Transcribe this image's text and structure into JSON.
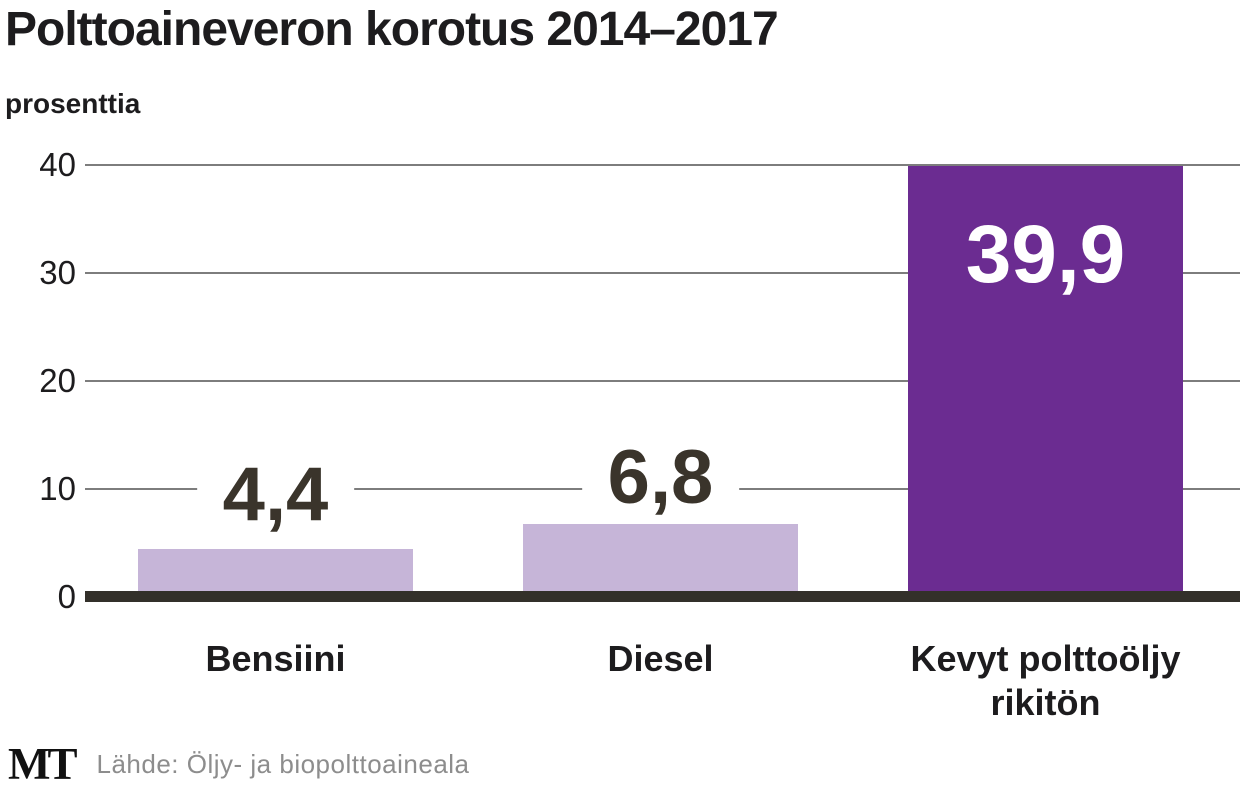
{
  "header": {
    "title": "Polttoaineveron korotus 2014–2017",
    "unit_label": "prosenttia"
  },
  "chart_data": {
    "type": "bar",
    "title": "Polttoaineveron korotus 2014–2017",
    "ylabel": "prosenttia",
    "categories": [
      "Bensiini",
      "Diesel",
      "Kevyt polttoöljy rikitön"
    ],
    "values": [
      4.4,
      6.8,
      39.9
    ],
    "value_labels": [
      "4,4",
      "6,8",
      "39,9"
    ],
    "yticks": [
      0,
      10,
      20,
      30,
      40
    ],
    "ylim": [
      0,
      40
    ],
    "grid": true,
    "legend": false,
    "bar_colors": [
      "#c6b5d8",
      "#c6b5d8",
      "#6b2c91"
    ]
  },
  "y_axis": {
    "ticks": [
      {
        "label": "0",
        "value": 0
      },
      {
        "label": "10",
        "value": 10
      },
      {
        "label": "20",
        "value": 20
      },
      {
        "label": "30",
        "value": 30
      },
      {
        "label": "40",
        "value": 40
      }
    ]
  },
  "bars": [
    {
      "id": "bensiini",
      "label_lines": [
        "Bensiini"
      ],
      "value": 4.4,
      "value_text": "4,4",
      "color": "#c6b5d8",
      "value_style": "above"
    },
    {
      "id": "diesel",
      "label_lines": [
        "Diesel"
      ],
      "value": 6.8,
      "value_text": "6,8",
      "color": "#c6b5d8",
      "value_style": "above"
    },
    {
      "id": "kevyt-polttooljy-rikiton",
      "label_lines": [
        "Kevyt polttoöljy",
        "rikitön"
      ],
      "value": 39.9,
      "value_text": "39,9",
      "color": "#6b2c91",
      "value_style": "inside"
    }
  ],
  "footer": {
    "logo": "MT",
    "source": "Lähde: Öljy- ja biopolttoaineala"
  },
  "colors": {
    "bar_light": "#c6b5d8",
    "bar_dark": "#6b2c91",
    "value_label_dark": "#3a342b",
    "value_label_inside": "#ffffff",
    "axis_line": "#33302a",
    "gridline": "#7d7d7d",
    "text": "#1d1c1e",
    "source_text": "#8d8d8d"
  }
}
